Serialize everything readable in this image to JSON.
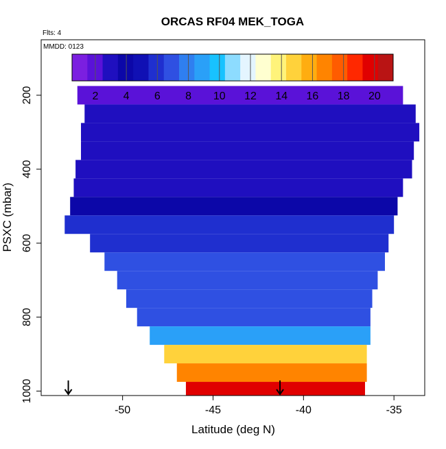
{
  "chart_data": {
    "type": "heatmap",
    "title": "ORCAS RF04 MEK_TOGA",
    "annotations": [
      "Flts: 4",
      "MMDD: 0123"
    ],
    "xlabel": "Latitude (deg N)",
    "ylabel": "PSXC (mbar)",
    "x_ticks": [
      "-50",
      "-45",
      "-40",
      "-35"
    ],
    "y_ticks": [
      "200",
      "400",
      "600",
      "800",
      "1000"
    ],
    "xlim": [
      -54.5,
      -33.3
    ],
    "ylim_reversed": [
      1012,
      50
    ],
    "y_range_plotted": [
      150,
      1012
    ],
    "legend": {
      "position": "top-inset",
      "ticks": [
        "2",
        "4",
        "6",
        "8",
        "10",
        "12",
        "14",
        "16",
        "18",
        "20"
      ],
      "range": [
        0.5,
        21.2
      ],
      "colors": [
        "#7b1fe0",
        "#5a12d8",
        "#1f0fbf",
        "#0c07a8",
        "#1010b4",
        "#1f2fcf",
        "#2f50e2",
        "#2f7ff0",
        "#2aa0f8",
        "#18c2ff",
        "#8ddcff",
        "#e4f5ff",
        "#ffffd0",
        "#fff37a",
        "#ffd23b",
        "#ffad10",
        "#ff8400",
        "#ff5c00",
        "#ff2800",
        "#e00000",
        "#b91414"
      ]
    },
    "series": [
      {
        "p": 200,
        "lat_min": -52.5,
        "lat_max": -34.5,
        "value": 2.0
      },
      {
        "p": 250,
        "lat_min": -52.1,
        "lat_max": -33.8,
        "value": 2.7
      },
      {
        "p": 300,
        "lat_min": -52.3,
        "lat_max": -33.6,
        "value": 3.0
      },
      {
        "p": 350,
        "lat_min": -52.3,
        "lat_max": -33.9,
        "value": 3.4
      },
      {
        "p": 400,
        "lat_min": -52.6,
        "lat_max": -34.0,
        "value": 3.4
      },
      {
        "p": 450,
        "lat_min": -52.7,
        "lat_max": -34.5,
        "value": 3.3
      },
      {
        "p": 500,
        "lat_min": -52.9,
        "lat_max": -34.8,
        "value": 3.7
      },
      {
        "p": 550,
        "lat_min": -53.2,
        "lat_max": -35.0,
        "value": 6.0
      },
      {
        "p": 600,
        "lat_min": -51.8,
        "lat_max": -35.3,
        "value": 6.3
      },
      {
        "p": 650,
        "lat_min": -51.0,
        "lat_max": -35.5,
        "value": 6.5
      },
      {
        "p": 700,
        "lat_min": -50.3,
        "lat_max": -35.9,
        "value": 6.8
      },
      {
        "p": 750,
        "lat_min": -49.8,
        "lat_max": -36.2,
        "value": 7.0
      },
      {
        "p": 800,
        "lat_min": -49.2,
        "lat_max": -36.3,
        "value": 7.3
      },
      {
        "p": 850,
        "lat_min": -48.5,
        "lat_max": -36.3,
        "value": 8.5
      },
      {
        "p": 900,
        "lat_min": -47.7,
        "lat_max": -36.5,
        "value": 14.3
      },
      {
        "p": 950,
        "lat_min": -47.0,
        "lat_max": -36.5,
        "value": 17.0
      },
      {
        "p": 1000,
        "lat_min": -46.5,
        "lat_max": -36.6,
        "value": 19.5
      }
    ],
    "arrows_lat": [
      -53.0,
      -41.3
    ]
  }
}
